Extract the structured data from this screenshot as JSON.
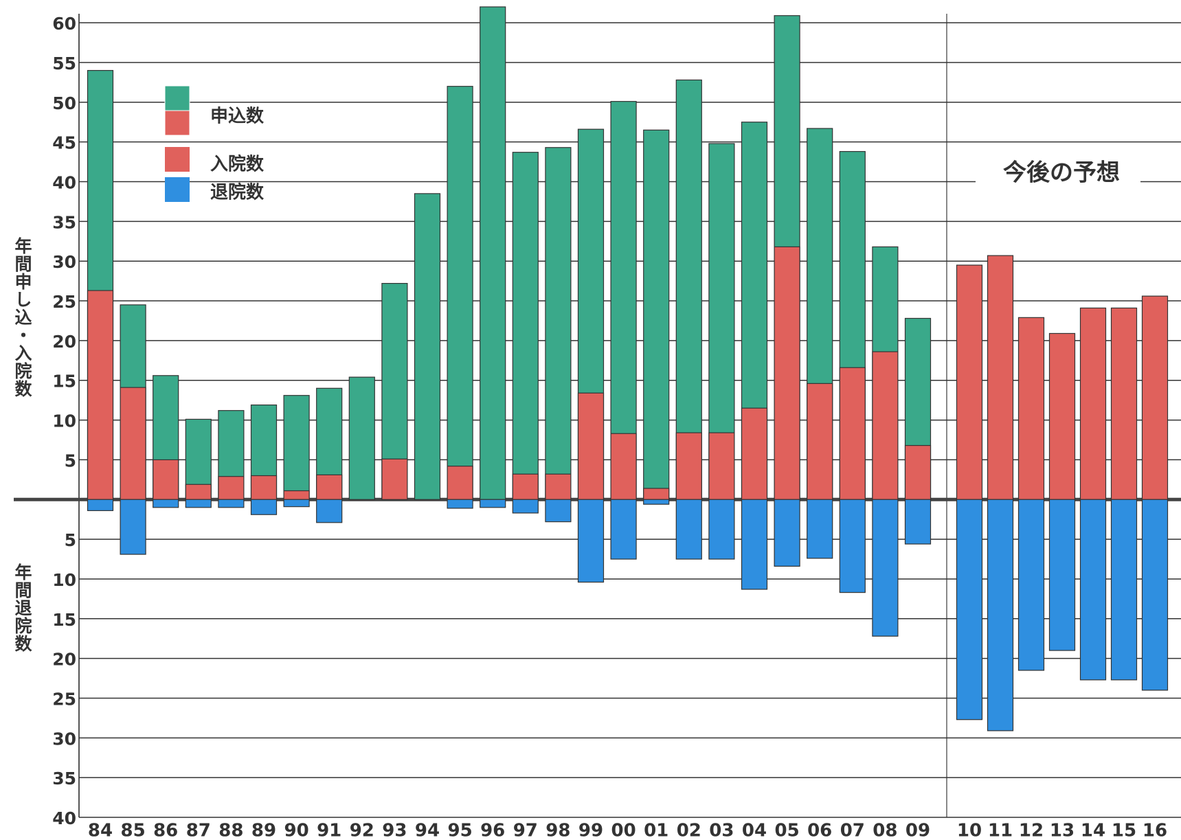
{
  "chart_data": {
    "type": "bar",
    "y_label_top": "年間申し込・入院数",
    "y_label_bottom": "年間退院数",
    "annotation": "今後の予想",
    "categories": [
      "84",
      "85",
      "86",
      "87",
      "88",
      "89",
      "90",
      "91",
      "92",
      "93",
      "94",
      "95",
      "96",
      "97",
      "98",
      "99",
      "00",
      "01",
      "02",
      "03",
      "04",
      "05",
      "06",
      "07",
      "08",
      "09",
      "10",
      "11",
      "12",
      "13",
      "14",
      "15",
      "16"
    ],
    "series": [
      {
        "name": "申込数",
        "color": "#3aa98a",
        "values": [
          54,
          24.5,
          15.6,
          10.1,
          11.2,
          11.9,
          13.1,
          14,
          15.4,
          27.2,
          38.5,
          52,
          62,
          43.7,
          44.3,
          46.6,
          50.1,
          46.5,
          52.8,
          44.8,
          47.5,
          60.9,
          46.7,
          43.8,
          31.8,
          22.8,
          null,
          null,
          null,
          null,
          null,
          null,
          null
        ]
      },
      {
        "name": "入院数",
        "color": "#e0615c",
        "values": [
          26.3,
          14.1,
          5,
          1.9,
          2.9,
          3,
          1.1,
          3.1,
          0,
          5.1,
          0,
          4.2,
          0,
          3.2,
          3.2,
          13.4,
          8.3,
          1.4,
          8.4,
          8.4,
          11.5,
          31.8,
          14.6,
          16.6,
          18.6,
          6.8,
          29.5,
          30.7,
          22.9,
          20.9,
          24.1,
          24.1,
          25.6
        ]
      },
      {
        "name": "退院数",
        "color": "#2f8fe0",
        "values": [
          -1.4,
          -6.9,
          -1,
          -1,
          -1,
          -1.9,
          -0.9,
          -2.9,
          0,
          0,
          0,
          -1.1,
          -1,
          -1.7,
          -2.8,
          -10.4,
          -7.5,
          -0.6,
          -7.5,
          -7.5,
          -11.3,
          -8.4,
          -7.4,
          -11.7,
          -17.2,
          -5.6,
          -27.7,
          -29.1,
          -21.5,
          -19,
          -22.7,
          -22.7,
          -24
        ]
      }
    ],
    "ylim": [
      -40,
      62
    ],
    "yticks": [
      {
        "value": -40,
        "label": "40"
      },
      {
        "value": -35,
        "label": "35"
      },
      {
        "value": -30,
        "label": "30"
      },
      {
        "value": -25,
        "label": "25"
      },
      {
        "value": -20,
        "label": "20"
      },
      {
        "value": -15,
        "label": "15"
      },
      {
        "value": -10,
        "label": "10"
      },
      {
        "value": -5,
        "label": "5"
      },
      5,
      10,
      15,
      20,
      25,
      30,
      35,
      40,
      45,
      50,
      55,
      60
    ],
    "grid": true
  }
}
